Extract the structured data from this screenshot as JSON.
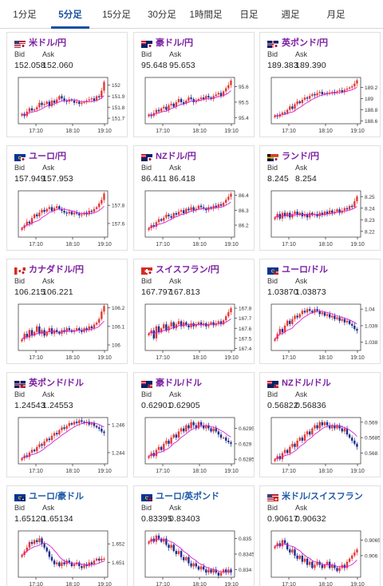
{
  "tabs": [
    {
      "label": "1分足",
      "active": false
    },
    {
      "label": "5分足",
      "active": true
    },
    {
      "label": "15分足",
      "active": false
    },
    {
      "label": "30分足",
      "active": false
    },
    {
      "label": "1時間足",
      "active": false
    },
    {
      "label": "日足",
      "active": false
    },
    {
      "label": "週足",
      "active": false
    },
    {
      "label": "月足",
      "active": false
    }
  ],
  "labels": {
    "bid": "Bid",
    "ask": "Ask"
  },
  "colors": {
    "up": "#e53935",
    "down": "#1a2f8f",
    "ma": "#d61fd6",
    "axis": "#444444",
    "grid": "#dddddd"
  },
  "pairs": [
    {
      "name": "米ドル/円",
      "color": "purple",
      "flag": "us-jp-flag-icon",
      "bid": "152.058",
      "ask": "152.060",
      "chart_data": {
        "type": "candlestick",
        "y_ticks": [
          "152",
          "151.9",
          "151.8",
          "151.7"
        ],
        "ylim": [
          151.65,
          152.07
        ],
        "x_ticks": [
          "17:10",
          "18:10",
          "19:10"
        ],
        "close": [
          151.74,
          151.72,
          151.76,
          151.79,
          151.77,
          151.78,
          151.8,
          151.84,
          151.82,
          151.83,
          151.85,
          151.81,
          151.86,
          151.84,
          151.87,
          151.9,
          151.88,
          151.86,
          151.85,
          151.87,
          151.86,
          151.84,
          151.85,
          151.83,
          151.84,
          151.85,
          151.86,
          151.87,
          151.88,
          151.86,
          151.9,
          151.89,
          151.95,
          152.03
        ]
      }
    },
    {
      "name": "豪ドル/円",
      "color": "purple",
      "flag": "au-jp-flag-icon",
      "bid": "95.648",
      "ask": "95.653",
      "chart_data": {
        "type": "candlestick",
        "y_ticks": [
          "95.6",
          "95.5",
          "95.4"
        ],
        "ylim": [
          95.36,
          95.66
        ],
        "x_ticks": [
          "17:10",
          "18:10",
          "19:10"
        ],
        "close": [
          95.42,
          95.41,
          95.43,
          95.45,
          95.44,
          95.46,
          95.47,
          95.45,
          95.48,
          95.49,
          95.47,
          95.5,
          95.52,
          95.5,
          95.49,
          95.51,
          95.53,
          95.52,
          95.5,
          95.51,
          95.52,
          95.53,
          95.52,
          95.54,
          95.53,
          95.52,
          95.54,
          95.55,
          95.56,
          95.54,
          95.57,
          95.59,
          95.61,
          95.64
        ]
      }
    },
    {
      "name": "英ポンド/円",
      "color": "purple",
      "flag": "uk-jp-flag-icon",
      "bid": "189.383",
      "ask": "189.390",
      "chart_data": {
        "type": "candlestick",
        "y_ticks": [
          "189.2",
          "189",
          "188.8",
          "188.6"
        ],
        "ylim": [
          188.55,
          189.38
        ],
        "x_ticks": [
          "17:10",
          "18:10",
          "19:10"
        ],
        "close": [
          188.7,
          188.68,
          188.72,
          188.75,
          188.74,
          188.8,
          188.86,
          188.82,
          188.9,
          188.95,
          188.92,
          188.98,
          189.02,
          189.0,
          189.05,
          189.08,
          189.06,
          189.1,
          189.12,
          189.08,
          189.1,
          189.09,
          189.11,
          189.12,
          189.1,
          189.13,
          189.15,
          189.12,
          189.16,
          189.18,
          189.2,
          189.22,
          189.27,
          189.33
        ]
      }
    },
    {
      "name": "ユーロ/円",
      "color": "purple",
      "flag": "eu-jp-flag-icon",
      "bid": "157.949",
      "ask": "157.953",
      "chart_data": {
        "type": "candlestick",
        "y_ticks": [
          "157.8",
          "157.6"
        ],
        "ylim": [
          157.45,
          157.96
        ],
        "x_ticks": [
          "17:10",
          "18:10",
          "19:10"
        ],
        "close": [
          157.55,
          157.58,
          157.62,
          157.6,
          157.66,
          157.7,
          157.68,
          157.72,
          157.75,
          157.73,
          157.76,
          157.78,
          157.74,
          157.77,
          157.79,
          157.76,
          157.74,
          157.72,
          157.71,
          157.73,
          157.7,
          157.72,
          157.71,
          157.69,
          157.7,
          157.72,
          157.7,
          157.74,
          157.73,
          157.76,
          157.78,
          157.82,
          157.86,
          157.93
        ]
      }
    },
    {
      "name": "NZドル/円",
      "color": "purple",
      "flag": "nz-jp-flag-icon",
      "bid": "86.411",
      "ask": "86.418",
      "chart_data": {
        "type": "candlestick",
        "y_ticks": [
          "86.4",
          "86.3",
          "86.2"
        ],
        "ylim": [
          86.12,
          86.43
        ],
        "x_ticks": [
          "17:10",
          "18:10",
          "19:10"
        ],
        "close": [
          86.18,
          86.2,
          86.19,
          86.22,
          86.24,
          86.23,
          86.25,
          86.27,
          86.26,
          86.25,
          86.28,
          86.27,
          86.29,
          86.3,
          86.28,
          86.31,
          86.3,
          86.32,
          86.3,
          86.31,
          86.33,
          86.32,
          86.31,
          86.3,
          86.32,
          86.31,
          86.33,
          86.32,
          86.34,
          86.33,
          86.35,
          86.37,
          86.39,
          86.41
        ]
      }
    },
    {
      "name": "ランド/円",
      "color": "purple",
      "flag": "za-jp-flag-icon",
      "bid": "8.245",
      "ask": "8.254",
      "chart_data": {
        "type": "candlestick",
        "y_ticks": [
          "8.25",
          "8.24",
          "8.23",
          "8.22"
        ],
        "ylim": [
          8.215,
          8.255
        ],
        "x_ticks": [
          "17:10",
          "18:10",
          "19:10"
        ],
        "close": [
          8.232,
          8.235,
          8.231,
          8.236,
          8.233,
          8.236,
          8.232,
          8.235,
          8.237,
          8.234,
          8.236,
          8.233,
          8.235,
          8.232,
          8.236,
          8.234,
          8.235,
          8.233,
          8.236,
          8.234,
          8.237,
          8.235,
          8.238,
          8.236,
          8.237,
          8.239,
          8.236,
          8.238,
          8.24,
          8.239,
          8.242,
          8.241,
          8.246,
          8.25
        ]
      }
    },
    {
      "name": "カナダドル/円",
      "color": "purple",
      "flag": "ca-jp-flag-icon",
      "bid": "106.215",
      "ask": "106.221",
      "chart_data": {
        "type": "candlestick",
        "y_ticks": [
          "106.2",
          "106.1",
          "106"
        ],
        "ylim": [
          105.97,
          106.22
        ],
        "x_ticks": [
          "17:10",
          "18:10",
          "19:10"
        ],
        "close": [
          106.03,
          106.06,
          106.04,
          106.08,
          106.05,
          106.07,
          106.1,
          106.06,
          106.08,
          106.05,
          106.07,
          106.09,
          106.06,
          106.08,
          106.07,
          106.06,
          106.08,
          106.07,
          106.09,
          106.08,
          106.07,
          106.08,
          106.09,
          106.08,
          106.07,
          106.09,
          106.08,
          106.1,
          106.09,
          106.11,
          106.12,
          106.14,
          106.18,
          106.21
        ]
      }
    },
    {
      "name": "スイスフラン/円",
      "color": "purple",
      "flag": "ch-jp-flag-icon",
      "bid": "167.797",
      "ask": "167.813",
      "chart_data": {
        "type": "candlestick",
        "y_ticks": [
          "167.8",
          "167.7",
          "167.6",
          "167.5",
          "167.4"
        ],
        "ylim": [
          167.38,
          167.84
        ],
        "x_ticks": [
          "17:10",
          "18:10",
          "19:10"
        ],
        "close": [
          167.55,
          167.58,
          167.5,
          167.62,
          167.56,
          167.6,
          167.64,
          167.58,
          167.62,
          167.66,
          167.6,
          167.64,
          167.67,
          167.62,
          167.66,
          167.63,
          167.61,
          167.65,
          167.62,
          167.64,
          167.66,
          167.63,
          167.65,
          167.62,
          167.64,
          167.66,
          167.63,
          167.65,
          167.67,
          167.64,
          167.68,
          167.72,
          167.76,
          167.8
        ]
      }
    },
    {
      "name": "ユーロ/ドル",
      "color": "purple",
      "flag": "eu-us-flag-icon",
      "bid": "1.03870",
      "ask": "1.03873",
      "chart_data": {
        "type": "candlestick",
        "y_ticks": [
          "1.04",
          "1.039",
          "1.038"
        ],
        "ylim": [
          1.0375,
          1.0403
        ],
        "x_ticks": [
          "17:10",
          "18:10",
          "19:10"
        ],
        "close": [
          1.0382,
          1.0385,
          1.0388,
          1.0386,
          1.039,
          1.0393,
          1.0391,
          1.0394,
          1.0396,
          1.0395,
          1.0397,
          1.0399,
          1.0398,
          1.04,
          1.0399,
          1.0398,
          1.04,
          1.0399,
          1.0397,
          1.0398,
          1.0396,
          1.0397,
          1.0395,
          1.0396,
          1.0394,
          1.0395,
          1.0393,
          1.0394,
          1.0392,
          1.0393,
          1.0391,
          1.039,
          1.0388,
          1.0387
        ]
      }
    },
    {
      "name": "英ポンド/ドル",
      "color": "purple",
      "flag": "uk-us-flag-icon",
      "bid": "1.24543",
      "ask": "1.24553",
      "chart_data": {
        "type": "candlestick",
        "y_ticks": [
          "1.246",
          "1.244"
        ],
        "ylim": [
          1.2432,
          1.2465
        ],
        "x_ticks": [
          "17:10",
          "18:10",
          "19:10"
        ],
        "close": [
          1.2436,
          1.2438,
          1.2437,
          1.244,
          1.2442,
          1.2441,
          1.2444,
          1.2446,
          1.2445,
          1.2448,
          1.245,
          1.2449,
          1.2452,
          1.2454,
          1.2453,
          1.2456,
          1.2458,
          1.2457,
          1.2459,
          1.2461,
          1.246,
          1.2462,
          1.2461,
          1.2463,
          1.2462,
          1.2461,
          1.2462,
          1.246,
          1.2461,
          1.2459,
          1.2458,
          1.2457,
          1.2455,
          1.2454
        ]
      }
    },
    {
      "name": "豪ドル/ドル",
      "color": "purple",
      "flag": "au-us-flag-icon",
      "bid": "0.62901",
      "ask": "0.62905",
      "chart_data": {
        "type": "candlestick",
        "y_ticks": [
          "0.6295",
          "0.629",
          "0.6285"
        ],
        "ylim": [
          0.62835,
          0.62985
        ],
        "x_ticks": [
          "17:10",
          "18:10",
          "19:10"
        ],
        "close": [
          0.6286,
          0.6287,
          0.6286,
          0.6288,
          0.6289,
          0.6288,
          0.629,
          0.6291,
          0.629,
          0.6292,
          0.6293,
          0.6292,
          0.6294,
          0.6295,
          0.6294,
          0.6296,
          0.6295,
          0.6297,
          0.6296,
          0.6295,
          0.6297,
          0.6296,
          0.6295,
          0.6296,
          0.6295,
          0.6294,
          0.6295,
          0.6294,
          0.6293,
          0.6292,
          0.6292,
          0.6291,
          0.62905,
          0.629
        ]
      }
    },
    {
      "name": "NZドル/ドル",
      "color": "purple",
      "flag": "nz-us-flag-icon",
      "bid": "0.56822",
      "ask": "0.56836",
      "chart_data": {
        "type": "candlestick",
        "y_ticks": [
          "0.569",
          "0.5685",
          "0.568"
        ],
        "ylim": [
          0.56765,
          0.56915
        ],
        "x_ticks": [
          "17:10",
          "18:10",
          "19:10"
        ],
        "close": [
          0.5678,
          0.5679,
          0.5678,
          0.568,
          0.5681,
          0.568,
          0.5682,
          0.5683,
          0.5682,
          0.5684,
          0.5685,
          0.5684,
          0.5686,
          0.5687,
          0.5686,
          0.5688,
          0.5689,
          0.5688,
          0.569,
          0.5689,
          0.569,
          0.5689,
          0.5688,
          0.5689,
          0.5688,
          0.5689,
          0.5688,
          0.5687,
          0.5688,
          0.5686,
          0.5685,
          0.5684,
          0.5683,
          0.5682
        ]
      }
    },
    {
      "name": "ユーロ/豪ドル",
      "color": "blue",
      "flag": "eu-au-flag-icon",
      "bid": "1.65120",
      "ask": "1.65134",
      "chart_data": {
        "type": "candlestick",
        "y_ticks": [
          "1.652",
          "1.651"
        ],
        "ylim": [
          1.6502,
          1.6527
        ],
        "x_ticks": [
          "17:10",
          "18:10",
          "19:10"
        ],
        "close": [
          1.6514,
          1.6516,
          1.6518,
          1.6521,
          1.652,
          1.6522,
          1.6521,
          1.6523,
          1.652,
          1.6518,
          1.6516,
          1.6513,
          1.6511,
          1.6509,
          1.651,
          1.6508,
          1.651,
          1.6509,
          1.6511,
          1.651,
          1.6508,
          1.6509,
          1.651,
          1.6508,
          1.6507,
          1.6509,
          1.6508,
          1.651,
          1.6509,
          1.6511,
          1.6512,
          1.6511,
          1.6512,
          1.6512
        ]
      }
    },
    {
      "name": "ユーロ/英ポンド",
      "color": "blue",
      "flag": "eu-uk-flag-icon",
      "bid": "0.83395",
      "ask": "0.83403",
      "chart_data": {
        "type": "candlestick",
        "y_ticks": [
          "0.835",
          "0.8345",
          "0.834"
        ],
        "ylim": [
          0.83375,
          0.83525
        ],
        "x_ticks": [
          "17:10",
          "18:10",
          "19:10"
        ],
        "close": [
          0.8349,
          0.835,
          0.8349,
          0.8351,
          0.835,
          0.8349,
          0.835,
          0.8348,
          0.8347,
          0.8348,
          0.8346,
          0.8345,
          0.8346,
          0.8344,
          0.8343,
          0.8344,
          0.8342,
          0.8341,
          0.8342,
          0.8341,
          0.834,
          0.8341,
          0.834,
          0.8339,
          0.834,
          0.8339,
          0.834,
          0.8339,
          0.8338,
          0.8339,
          0.834,
          0.8339,
          0.834,
          0.8339
        ]
      }
    },
    {
      "name": "米ドル/スイスフラン",
      "color": "blue",
      "flag": "us-ch-flag-icon",
      "bid": "0.90617",
      "ask": "0.90632",
      "chart_data": {
        "type": "candlestick",
        "y_ticks": [
          "0.9065",
          "0.906"
        ],
        "ylim": [
          0.9053,
          0.9068
        ],
        "x_ticks": [
          "17:10",
          "18:10",
          "19:10"
        ],
        "close": [
          0.9063,
          0.9064,
          0.9063,
          0.9065,
          0.9064,
          0.9062,
          0.9061,
          0.9062,
          0.906,
          0.9059,
          0.906,
          0.9058,
          0.9059,
          0.9057,
          0.9058,
          0.9056,
          0.9057,
          0.9058,
          0.9057,
          0.9056,
          0.9057,
          0.9058,
          0.9056,
          0.9057,
          0.9056,
          0.9055,
          0.9056,
          0.9057,
          0.9056,
          0.9058,
          0.9059,
          0.906,
          0.9061,
          0.9062
        ]
      }
    }
  ]
}
